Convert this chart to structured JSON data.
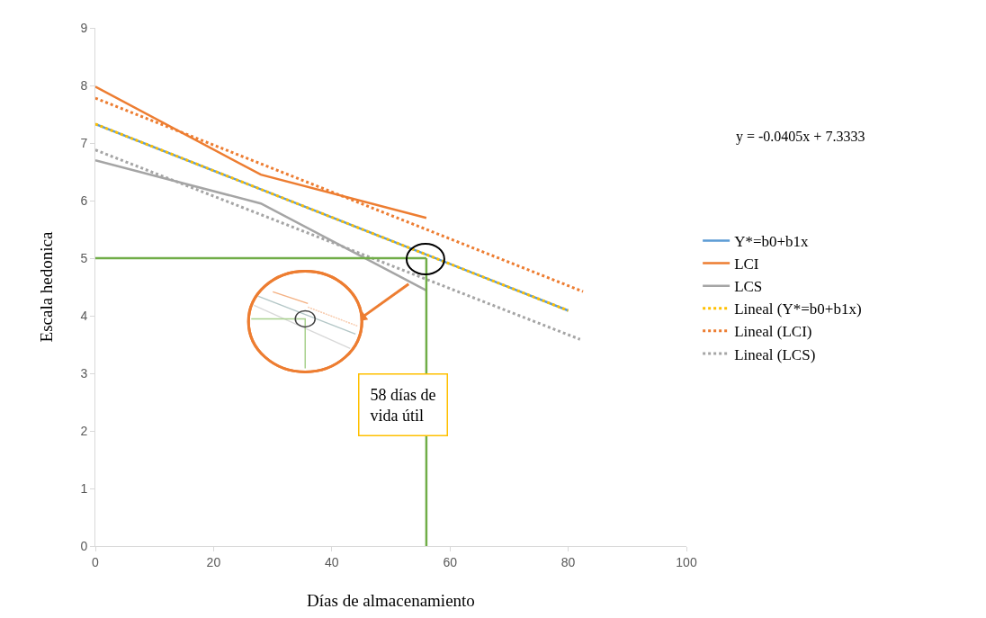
{
  "chart_data": {
    "type": "line",
    "xlabel": "Días de almacenamiento",
    "ylabel": "Escala hedonica",
    "xlim": [
      0,
      100
    ],
    "xticks": [
      0,
      20,
      40,
      60,
      80,
      100
    ],
    "ylim": [
      0,
      9
    ],
    "yticks": [
      0,
      1,
      2,
      3,
      4,
      5,
      6,
      7,
      8,
      9
    ],
    "grid": false,
    "legend": "right",
    "series": [
      {
        "name": "Y*=b0+b1x",
        "color": "#5b9bd5",
        "x": [
          0,
          80
        ],
        "values": [
          7.33,
          4.09
        ],
        "line_style": "solid"
      },
      {
        "name": "LCI",
        "color": "#ed7d31",
        "x": [
          0,
          28,
          56
        ],
        "values": [
          7.98,
          6.45,
          5.7
        ],
        "line_style": "solid"
      },
      {
        "name": "LCS",
        "color": "#a5a5a5",
        "x": [
          0,
          28,
          56
        ],
        "values": [
          6.7,
          5.95,
          4.44
        ],
        "line_style": "solid"
      },
      {
        "name": "Lineal (Y*=b0+b1x)",
        "color": "#ffc000",
        "x": [
          0,
          80
        ],
        "values": [
          7.33,
          4.09
        ],
        "line_style": "dotted"
      },
      {
        "name": "Lineal (LCI)",
        "color": "#ed7d31",
        "x": [
          0,
          82.5
        ],
        "values": [
          7.78,
          4.42
        ],
        "line_style": "dotted"
      },
      {
        "name": "Lineal (LCS)",
        "color": "#a5a5a5",
        "x": [
          0,
          82
        ],
        "values": [
          6.88,
          3.59
        ],
        "line_style": "dotted"
      },
      {
        "color": "#70ad47",
        "x": [
          0,
          56
        ],
        "values": [
          5,
          5
        ],
        "line_style": "solid"
      },
      {
        "color": "#70ad47",
        "x": [
          56,
          56
        ],
        "values": [
          5,
          0
        ],
        "line_style": "solid"
      }
    ],
    "annotations": [
      "y = -0.0405x + 7.3333",
      "58 días de\nvida útil"
    ]
  }
}
